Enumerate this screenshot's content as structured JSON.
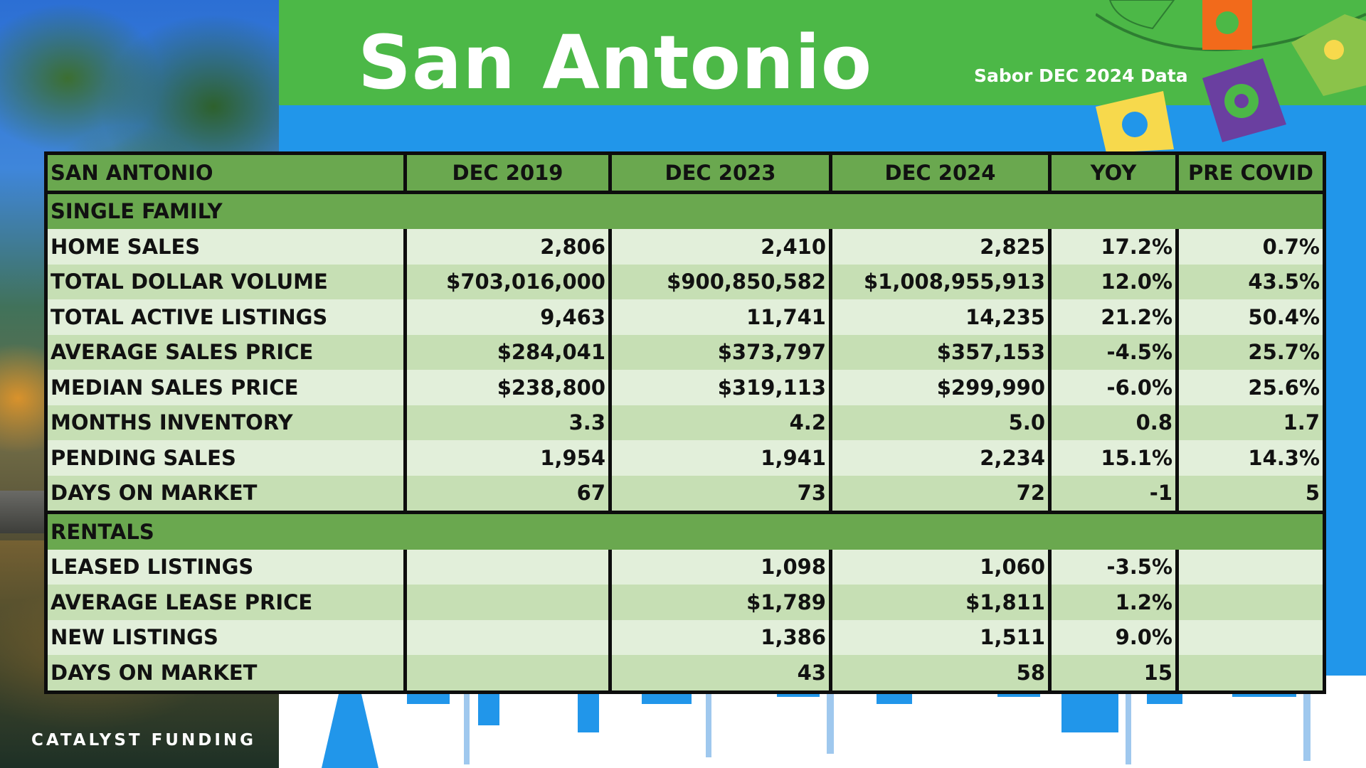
{
  "header": {
    "title": "San Antonio",
    "subtitle": "Sabor DEC 2024 Data"
  },
  "footer": {
    "brand": "CATALYST FUNDING"
  },
  "colors": {
    "banner_green": "#4cb847",
    "background_blue": "#2196ea",
    "header_row_green": "#6aa84f",
    "row_light": "#e2efda",
    "row_mid": "#c6dfb4"
  },
  "table": {
    "columns": [
      "SAN ANTONIO",
      "DEC 2019",
      "DEC 2023",
      "DEC 2024",
      "YOY",
      "PRE COVID"
    ],
    "sections": [
      {
        "name": "SINGLE FAMILY",
        "rows": [
          [
            "HOME SALES",
            "2,806",
            "2,410",
            "2,825",
            "17.2%",
            "0.7%"
          ],
          [
            "TOTAL DOLLAR VOLUME",
            "$703,016,000",
            "$900,850,582",
            "$1,008,955,913",
            "12.0%",
            "43.5%"
          ],
          [
            "TOTAL ACTIVE LISTINGS",
            "9,463",
            "11,741",
            "14,235",
            "21.2%",
            "50.4%"
          ],
          [
            "AVERAGE SALES PRICE",
            "$284,041",
            "$373,797",
            "$357,153",
            "-4.5%",
            "25.7%"
          ],
          [
            "MEDIAN SALES PRICE",
            "$238,800",
            "$319,113",
            "$299,990",
            "-6.0%",
            "25.6%"
          ],
          [
            "MONTHS INVENTORY",
            "3.3",
            "4.2",
            "5.0",
            "0.8",
            "1.7"
          ],
          [
            "PENDING SALES",
            "1,954",
            "1,941",
            "2,234",
            "15.1%",
            "14.3%"
          ],
          [
            "DAYS ON MARKET",
            "67",
            "73",
            "72",
            "-1",
            "5"
          ]
        ]
      },
      {
        "name": "RENTALS",
        "rows": [
          [
            "LEASED LISTINGS",
            "",
            "1,098",
            "1,060",
            "-3.5%",
            ""
          ],
          [
            "AVERAGE LEASE PRICE",
            "",
            "$1,789",
            "$1,811",
            "1.2%",
            ""
          ],
          [
            "NEW LISTINGS",
            "",
            "1,386",
            "1,511",
            "9.0%",
            ""
          ],
          [
            "DAYS ON MARKET",
            "",
            "43",
            "58",
            "15",
            ""
          ]
        ]
      }
    ]
  }
}
